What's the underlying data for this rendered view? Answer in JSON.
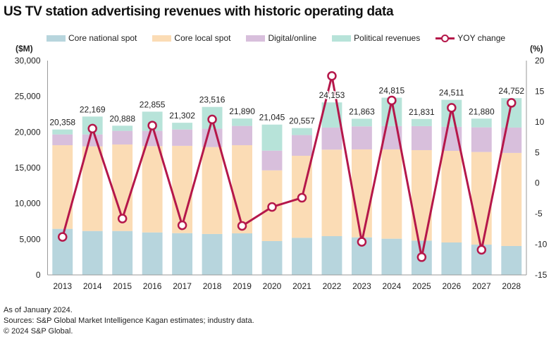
{
  "title": "US TV station advertising revenues with historic operating data",
  "legend": [
    {
      "label": "Core national spot",
      "color": "#b7d5dd",
      "kind": "bar"
    },
    {
      "label": "Core local spot",
      "color": "#fbdcb5",
      "kind": "bar"
    },
    {
      "label": "Digital/online",
      "color": "#d8bfdc",
      "kind": "bar"
    },
    {
      "label": "Political revenues",
      "color": "#b7e3d9",
      "kind": "bar"
    },
    {
      "label": "YOY change",
      "color": "#b5174a",
      "kind": "line"
    }
  ],
  "left_axis_unit": "($M)",
  "right_axis_unit": "(%)",
  "footer": {
    "line1": "As of January 2024.",
    "line2": "Sources: S&P Global Market Intelligence Kagan estimates; industry data.",
    "line3": "© 2024 S&P Global."
  },
  "chart_data": {
    "type": "bar",
    "stacked": true,
    "title": "US TV station advertising revenues with historic operating data",
    "xlabel": "",
    "ylabel": "($M)",
    "y2label": "(%)",
    "ylim": [
      0,
      30000
    ],
    "y2lim": [
      -15,
      20
    ],
    "yticks": [
      "0",
      "5,000",
      "10,000",
      "15,000",
      "20,000",
      "25,000",
      "30,000"
    ],
    "ytick_values": [
      0,
      5000,
      10000,
      15000,
      20000,
      25000,
      30000
    ],
    "y2ticks": [
      "-15",
      "-10",
      "-5",
      "0",
      "5",
      "10",
      "15",
      "20"
    ],
    "y2tick_values": [
      -15,
      -10,
      -5,
      0,
      5,
      10,
      15,
      20
    ],
    "grid": false,
    "legend_position": "top",
    "categories": [
      "2013",
      "2014",
      "2015",
      "2016",
      "2017",
      "2018",
      "2019",
      "2020",
      "2021",
      "2022",
      "2023",
      "2024",
      "2025",
      "2026",
      "2027",
      "2028"
    ],
    "series": [
      {
        "name": "Core national spot",
        "color": "#b7d5dd",
        "values": [
          6450,
          6150,
          6150,
          5950,
          5850,
          5730,
          5820,
          4740,
          5200,
          5430,
          5260,
          5070,
          4800,
          4540,
          4240,
          4050
        ]
      },
      {
        "name": "Core local spot",
        "color": "#fbdcb5",
        "values": [
          11710,
          11850,
          12110,
          12080,
          12220,
          12170,
          12340,
          9900,
          11480,
          12110,
          12310,
          12500,
          12670,
          12830,
          12970,
          13030
        ]
      },
      {
        "name": "Digital/online",
        "color": "#d8bfdc",
        "values": [
          1510,
          1670,
          1910,
          2140,
          2290,
          2570,
          2700,
          2760,
          2900,
          3090,
          3230,
          3260,
          3360,
          3360,
          3450,
          3550
        ]
      },
      {
        "name": "Political revenues",
        "color": "#b7e3d9",
        "values": [
          688,
          2499,
          718,
          2685,
          942,
          3046,
          1030,
          3645,
          977,
          3523,
          1063,
          3985,
          1001,
          3781,
          1220,
          4122
        ]
      }
    ],
    "totals": [
      20358,
      22169,
      20888,
      22855,
      21302,
      23516,
      21890,
      21045,
      20557,
      24153,
      21863,
      24815,
      21831,
      24511,
      21880,
      24752
    ],
    "total_labels": [
      "20,358",
      "22,169",
      "20,888",
      "22,855",
      "21,302",
      "23,516",
      "21,890",
      "21,045",
      "20,557",
      "24,153",
      "21,863",
      "24,815",
      "21,831",
      "24,511",
      "21,880",
      "24,752"
    ],
    "line_series": {
      "name": "YOY change",
      "color": "#b5174a",
      "axis": "right",
      "values": [
        -8.8,
        8.9,
        -5.8,
        9.4,
        -6.9,
        10.4,
        -7.0,
        -3.9,
        -2.4,
        17.5,
        -9.6,
        13.5,
        -12.1,
        12.3,
        -10.9,
        13.1
      ]
    }
  }
}
